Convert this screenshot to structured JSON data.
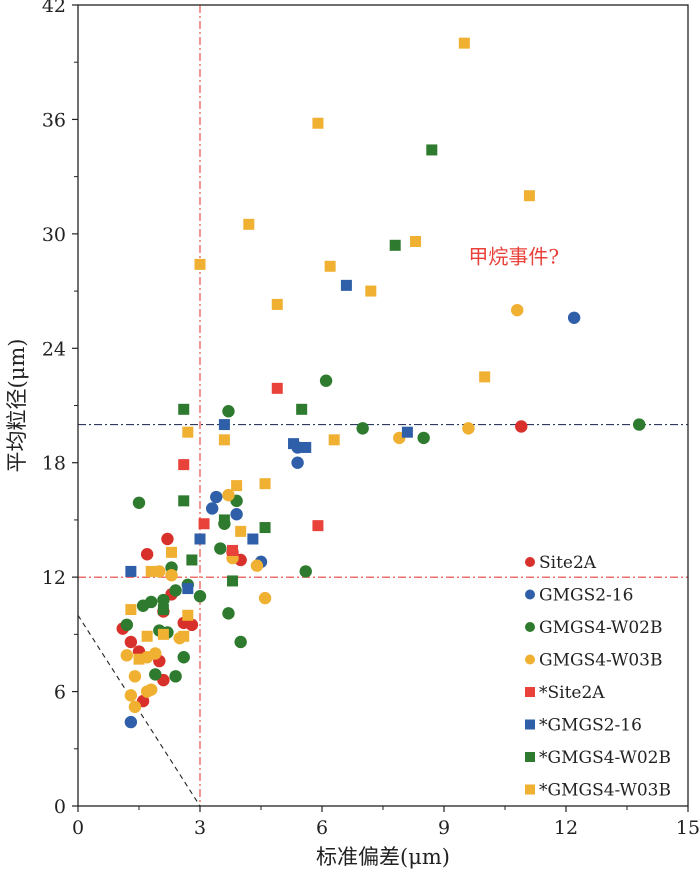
{
  "chart_data": {
    "type": "scatter",
    "xlabel": "标准偏差(μm)",
    "ylabel": "平均粒径(μm)",
    "xlim": [
      0,
      15
    ],
    "ylim": [
      0,
      42
    ],
    "xticks": [
      "0",
      "3",
      "6",
      "9",
      "12",
      "15"
    ],
    "yticks": [
      "0",
      "6",
      "12",
      "18",
      "24",
      "30",
      "36",
      "42"
    ],
    "grid": false,
    "legend_position": "bottom-right",
    "annotation": {
      "text": "甲烷事件?",
      "x": 9.6,
      "y": 28.8,
      "color": "#e8423a"
    },
    "reference_lines": [
      {
        "orientation": "vertical",
        "value": 3,
        "color": "#e8423a",
        "style": "dash-dot"
      },
      {
        "orientation": "horizontal",
        "value": 12,
        "color": "#e8423a",
        "style": "dash-dot"
      },
      {
        "orientation": "horizontal",
        "value": 20,
        "color": "#2f3b5c",
        "style": "dash-dot"
      },
      {
        "orientation": "diagonal",
        "from": [
          0,
          10
        ],
        "to": [
          3,
          0
        ],
        "color": "#222222",
        "style": "dash"
      }
    ],
    "series": [
      {
        "name": "Site2A",
        "marker": "circle",
        "color": "#d8312b",
        "points": [
          [
            1.1,
            9.3
          ],
          [
            1.3,
            8.6
          ],
          [
            1.5,
            8.1
          ],
          [
            1.7,
            13.2
          ],
          [
            2.2,
            14.0
          ],
          [
            2.0,
            7.6
          ],
          [
            2.1,
            6.6
          ],
          [
            2.1,
            10.2
          ],
          [
            2.3,
            11.1
          ],
          [
            2.6,
            9.6
          ],
          [
            2.8,
            9.5
          ],
          [
            1.6,
            5.5
          ],
          [
            3.8,
            13.3
          ],
          [
            4.0,
            12.9
          ],
          [
            10.9,
            19.9
          ]
        ]
      },
      {
        "name": "GMGS2-16",
        "marker": "circle",
        "color": "#2f5fa8",
        "points": [
          [
            1.3,
            4.4
          ],
          [
            3.3,
            15.6
          ],
          [
            3.4,
            16.2
          ],
          [
            3.9,
            15.3
          ],
          [
            4.5,
            12.8
          ],
          [
            5.4,
            18.0
          ],
          [
            5.4,
            18.8
          ],
          [
            12.2,
            25.6
          ]
        ]
      },
      {
        "name": "GMGS4-W02B",
        "marker": "circle",
        "color": "#2e7a2e",
        "points": [
          [
            1.2,
            9.5
          ],
          [
            1.5,
            15.9
          ],
          [
            1.6,
            10.5
          ],
          [
            1.8,
            10.7
          ],
          [
            1.9,
            6.9
          ],
          [
            2.0,
            9.2
          ],
          [
            2.1,
            10.8
          ],
          [
            2.2,
            9.1
          ],
          [
            2.3,
            12.5
          ],
          [
            2.4,
            6.8
          ],
          [
            2.4,
            11.3
          ],
          [
            2.6,
            7.8
          ],
          [
            2.7,
            11.6
          ],
          [
            3.0,
            11.0
          ],
          [
            3.5,
            13.5
          ],
          [
            3.6,
            14.8
          ],
          [
            3.7,
            10.1
          ],
          [
            3.7,
            20.7
          ],
          [
            3.9,
            16.0
          ],
          [
            4.0,
            8.6
          ],
          [
            5.6,
            12.3
          ],
          [
            6.1,
            22.3
          ],
          [
            7.0,
            19.8
          ],
          [
            8.5,
            19.3
          ],
          [
            13.8,
            20.0
          ]
        ]
      },
      {
        "name": "GMGS4-W03B",
        "marker": "circle",
        "color": "#f0b032",
        "points": [
          [
            1.2,
            7.9
          ],
          [
            1.3,
            5.8
          ],
          [
            1.4,
            6.8
          ],
          [
            1.4,
            5.2
          ],
          [
            1.7,
            7.8
          ],
          [
            1.7,
            6.0
          ],
          [
            1.8,
            6.1
          ],
          [
            1.9,
            8.0
          ],
          [
            2.0,
            12.3
          ],
          [
            2.3,
            12.1
          ],
          [
            2.5,
            8.8
          ],
          [
            3.7,
            16.3
          ],
          [
            3.8,
            13.0
          ],
          [
            4.4,
            12.6
          ],
          [
            4.6,
            10.9
          ],
          [
            7.9,
            19.3
          ],
          [
            9.6,
            19.8
          ],
          [
            10.8,
            26.0
          ]
        ]
      },
      {
        "name": "*Site2A",
        "marker": "square",
        "color": "#e8423a",
        "points": [
          [
            2.6,
            17.9
          ],
          [
            3.1,
            14.8
          ],
          [
            3.8,
            13.4
          ],
          [
            4.9,
            21.9
          ],
          [
            5.9,
            14.7
          ]
        ]
      },
      {
        "name": "*GMGS2-16",
        "marker": "square",
        "color": "#2f5fa8",
        "points": [
          [
            1.3,
            12.3
          ],
          [
            2.7,
            11.4
          ],
          [
            3.0,
            14.0
          ],
          [
            3.6,
            20.0
          ],
          [
            4.3,
            14.0
          ],
          [
            5.3,
            19.0
          ],
          [
            5.6,
            18.8
          ],
          [
            6.6,
            27.3
          ],
          [
            8.1,
            19.6
          ]
        ]
      },
      {
        "name": "*GMGS4-W02B",
        "marker": "square",
        "color": "#2e7a2e",
        "points": [
          [
            2.1,
            10.3
          ],
          [
            2.6,
            20.8
          ],
          [
            2.6,
            16.0
          ],
          [
            2.8,
            12.9
          ],
          [
            3.6,
            15.0
          ],
          [
            3.8,
            11.8
          ],
          [
            4.6,
            14.6
          ],
          [
            5.5,
            20.8
          ],
          [
            7.8,
            29.4
          ],
          [
            8.7,
            34.4
          ]
        ]
      },
      {
        "name": "*GMGS4-W03B",
        "marker": "square",
        "color": "#f0b032",
        "points": [
          [
            1.3,
            10.3
          ],
          [
            1.5,
            7.7
          ],
          [
            1.7,
            8.9
          ],
          [
            1.8,
            12.3
          ],
          [
            2.1,
            9.0
          ],
          [
            2.3,
            13.3
          ],
          [
            2.6,
            8.9
          ],
          [
            2.7,
            19.6
          ],
          [
            2.7,
            10.0
          ],
          [
            3.0,
            28.4
          ],
          [
            3.6,
            19.2
          ],
          [
            3.9,
            16.8
          ],
          [
            4.0,
            14.4
          ],
          [
            4.2,
            30.5
          ],
          [
            4.6,
            16.9
          ],
          [
            4.9,
            26.3
          ],
          [
            5.9,
            35.8
          ],
          [
            6.2,
            28.3
          ],
          [
            6.3,
            19.2
          ],
          [
            7.2,
            27.0
          ],
          [
            8.3,
            29.6
          ],
          [
            9.5,
            40.0
          ],
          [
            10.0,
            22.5
          ],
          [
            11.1,
            32.0
          ]
        ]
      }
    ]
  }
}
